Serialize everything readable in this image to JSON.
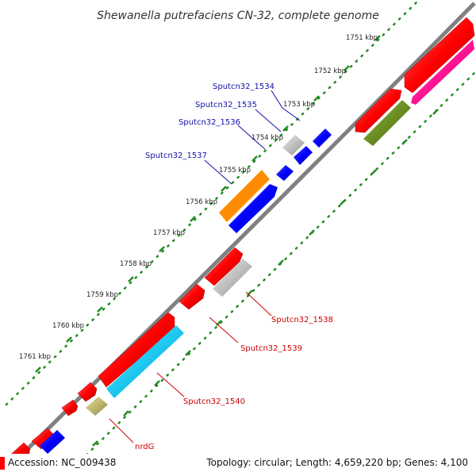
{
  "title": "Shewanella putrefaciens CN-32, complete genome",
  "ticks": [
    {
      "label": "1751 kbp"
    },
    {
      "label": "1752 kbp"
    },
    {
      "label": "1753 kbp"
    },
    {
      "label": "1754 kbp"
    },
    {
      "label": "1755 kbp"
    },
    {
      "label": "1756 kbp"
    },
    {
      "label": "1757 kbp"
    },
    {
      "label": "1758 kbp"
    },
    {
      "label": "1759 kbp"
    },
    {
      "label": "1760 kbp"
    },
    {
      "label": "1761 kbp"
    }
  ],
  "gene_labels_top": [
    "Sputcn32_1534",
    "Sputcn32_1535",
    "Sputcn32_1536",
    "Sputcn32_1537"
  ],
  "gene_labels_bottom": [
    "Sputcn32_1538",
    "Sputcn32_1539",
    "Sputcn32_1540",
    "nrdG"
  ],
  "colors": {
    "forward_cds": "#ff0000",
    "reverse_cds": "#0000ff",
    "gray_feature": "#c0c0c0",
    "pink_feature": "#ff1493",
    "olive_feature": "#6b8e23",
    "cyan_feature": "#1ec8f0",
    "khaki_feature": "#bdb76b",
    "backbone": "#808080",
    "tick_dots": "#228b22",
    "label_blue": "#1010a8",
    "label_red": "#cc0000"
  },
  "footer": {
    "accession": "Accession: NC_009438",
    "summary": "Topology: circular; Length: 4,659,220 bp; Genes: 4,100"
  }
}
